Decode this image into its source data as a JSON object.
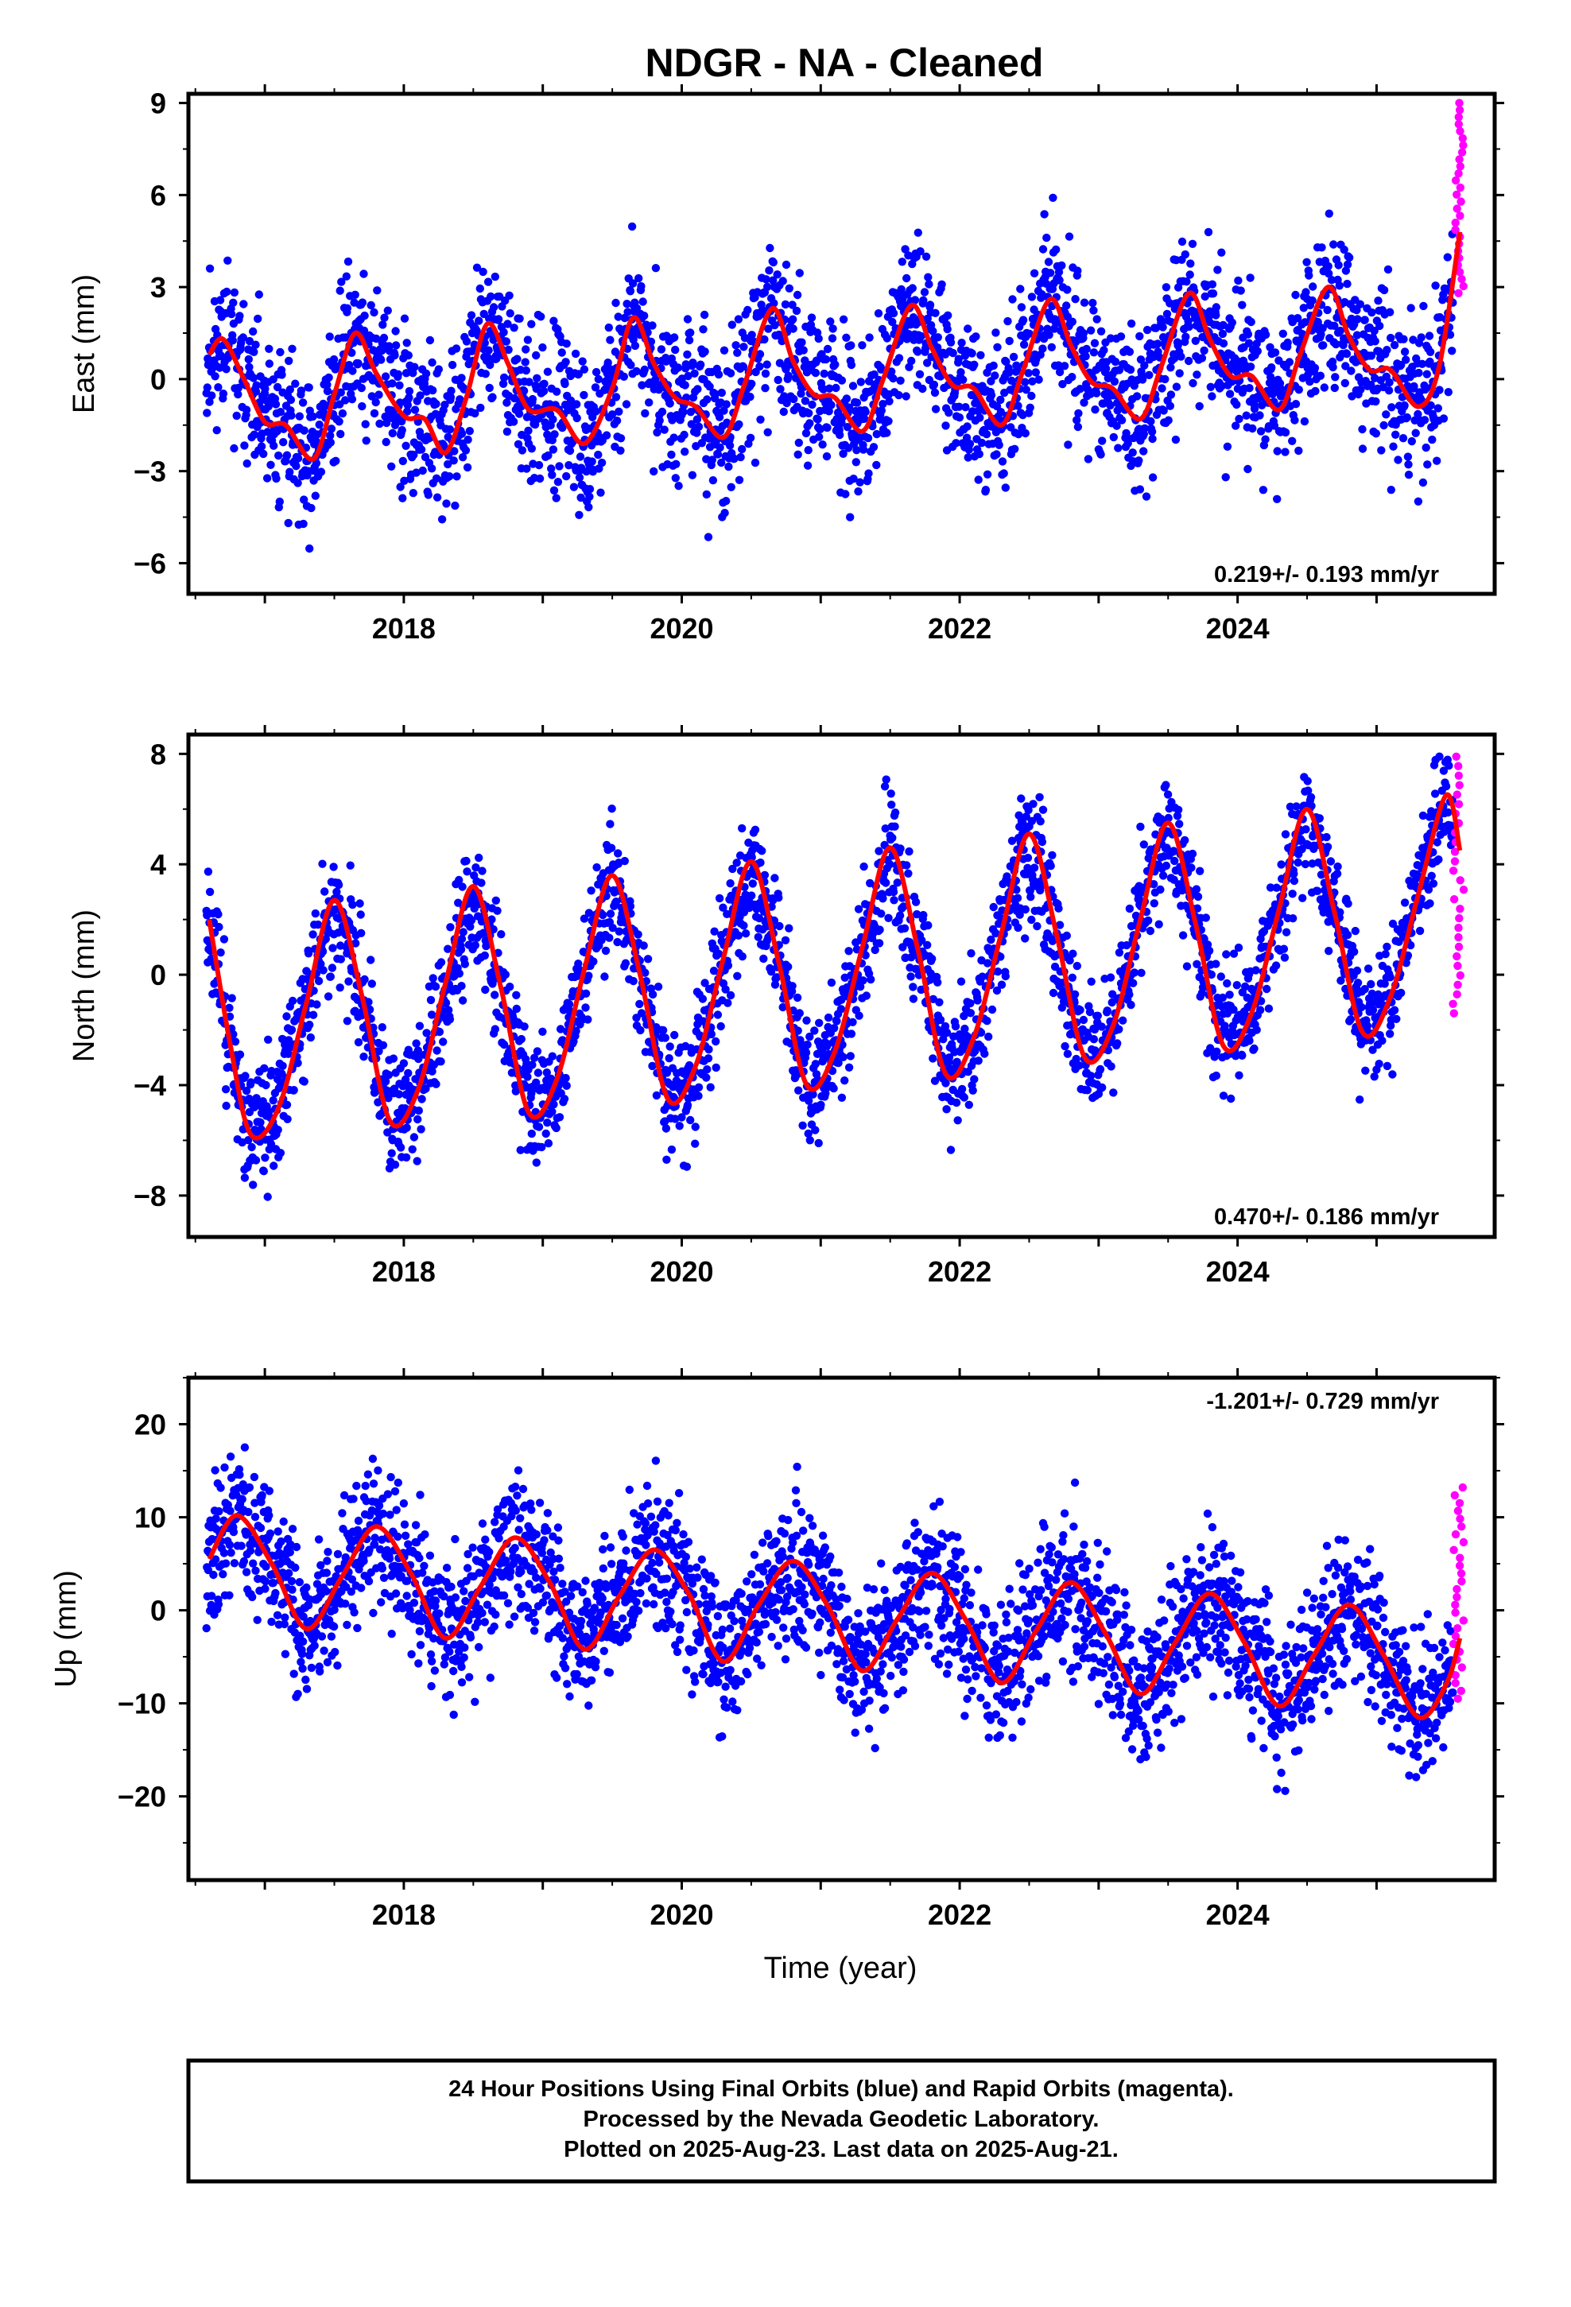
{
  "title": "NDGR  - NA - Cleaned",
  "footer": {
    "line1": "24 Hour Positions Using Final Orbits (blue) and Rapid Orbits (magenta).",
    "line2": "Processed by the Nevada Geodetic Laboratory.",
    "line3": "Plotted on 2025-Aug-23. Last data on 2025-Aug-21."
  },
  "colors": {
    "final": "#0000ff",
    "rapid": "#ff00ff",
    "fit": "#ff0000",
    "frame": "#000000"
  },
  "chart_data": [
    {
      "type": "scatter",
      "ylabel": "East (mm)",
      "xlim": [
        2016.45,
        2025.85
      ],
      "ylim": [
        -7,
        9.3
      ],
      "yticks": [
        -6,
        -3,
        0,
        3,
        6,
        9
      ],
      "xticks": [
        2018,
        2020,
        2022,
        2024
      ],
      "xticklabels": [
        "2018",
        "2020",
        "2022",
        "2024"
      ],
      "rate_label": "0.219+/- 0.193 mm/yr",
      "fit": {
        "x": [
          2016.6,
          2016.7,
          2016.85,
          2017.0,
          2017.15,
          2017.35,
          2017.5,
          2017.65,
          2017.8,
          2018.0,
          2018.15,
          2018.3,
          2018.45,
          2018.6,
          2018.75,
          2018.9,
          2019.1,
          2019.3,
          2019.5,
          2019.65,
          2019.8,
          2019.95,
          2020.1,
          2020.3,
          2020.45,
          2020.65,
          2020.8,
          2020.95,
          2021.1,
          2021.3,
          2021.45,
          2021.65,
          2021.8,
          2021.95,
          2022.1,
          2022.3,
          2022.45,
          2022.65,
          2022.8,
          2022.95,
          2023.1,
          2023.3,
          2023.45,
          2023.65,
          2023.8,
          2023.95,
          2024.1,
          2024.3,
          2024.45,
          2024.65,
          2024.8,
          2024.95,
          2025.1,
          2025.3,
          2025.45,
          2025.6
        ],
        "y": [
          0.8,
          1.3,
          0.0,
          -1.4,
          -1.5,
          -2.6,
          -0.5,
          1.5,
          0.2,
          -1.2,
          -1.3,
          -2.4,
          -0.6,
          1.8,
          0.5,
          -1.0,
          -1.0,
          -2.1,
          -0.3,
          2.0,
          0.5,
          -0.6,
          -0.9,
          -1.9,
          -0.2,
          2.3,
          0.6,
          -0.5,
          -0.6,
          -1.7,
          0.0,
          2.4,
          1.0,
          -0.2,
          -0.3,
          -1.5,
          0.2,
          2.6,
          1.1,
          -0.1,
          -0.3,
          -1.3,
          0.4,
          2.8,
          1.3,
          0.1,
          0.1,
          -1.0,
          0.8,
          3.0,
          1.4,
          0.3,
          0.3,
          -0.9,
          0.4,
          4.8
        ]
      },
      "rapid": {
        "x_range": [
          2025.55,
          2025.63
        ],
        "y_range": [
          2.8,
          9.0
        ]
      },
      "scatter": {
        "sd": 1.25,
        "seed": 11
      }
    },
    {
      "type": "scatter",
      "ylabel": "North (mm)",
      "xlim": [
        2016.45,
        2025.85
      ],
      "ylim": [
        -9.5,
        8.7
      ],
      "yticks": [
        -8,
        -4,
        0,
        4,
        8
      ],
      "xticks": [
        2018,
        2020,
        2022,
        2024
      ],
      "xticklabels": [
        "2018",
        "2020",
        "2022",
        "2024"
      ],
      "rate_label": "0.470+/- 0.186 mm/yr",
      "fit": {
        "x": [
          2016.6,
          2016.75,
          2016.9,
          2017.1,
          2017.3,
          2017.5,
          2017.7,
          2017.9,
          2018.1,
          2018.3,
          2018.5,
          2018.7,
          2018.9,
          2019.1,
          2019.3,
          2019.5,
          2019.7,
          2019.9,
          2020.1,
          2020.3,
          2020.5,
          2020.7,
          2020.9,
          2021.1,
          2021.3,
          2021.5,
          2021.7,
          2021.9,
          2022.1,
          2022.3,
          2022.5,
          2022.7,
          2022.9,
          2023.1,
          2023.3,
          2023.5,
          2023.7,
          2023.9,
          2024.1,
          2024.3,
          2024.5,
          2024.7,
          2024.9,
          2025.1,
          2025.3,
          2025.5,
          2025.6
        ],
        "y": [
          2.0,
          -2.5,
          -5.8,
          -4.8,
          -1.0,
          2.7,
          -0.8,
          -5.3,
          -4.2,
          -0.3,
          3.2,
          -0.5,
          -5.0,
          -3.8,
          0.2,
          3.6,
          0.0,
          -4.5,
          -3.3,
          0.6,
          4.1,
          0.4,
          -4.0,
          -2.8,
          1.0,
          4.6,
          0.9,
          -3.6,
          -2.3,
          1.5,
          5.1,
          1.4,
          -3.0,
          -1.9,
          2.0,
          5.5,
          1.8,
          -2.6,
          -1.4,
          2.4,
          6.0,
          2.2,
          -2.1,
          -0.8,
          2.9,
          6.5,
          4.5
        ]
      },
      "rapid": {
        "x_range": [
          2025.55,
          2025.63
        ],
        "y_range": [
          -1.4,
          7.9
        ]
      },
      "scatter": {
        "sd": 1.1,
        "seed": 23
      }
    },
    {
      "type": "scatter",
      "ylabel": "Up (mm)",
      "xlim": [
        2016.45,
        2025.85
      ],
      "ylim": [
        -29,
        25
      ],
      "yticks": [
        -20,
        -10,
        0,
        10,
        20
      ],
      "xticks": [
        2018,
        2020,
        2022,
        2024
      ],
      "xticklabels": [
        "2018",
        "2020",
        "2022",
        "2024"
      ],
      "xlabel": "Time (year)",
      "rate_label": "-1.201+/- 0.729 mm/yr",
      "fit": {
        "x": [
          2016.6,
          2016.8,
          2017.05,
          2017.3,
          2017.55,
          2017.8,
          2018.05,
          2018.3,
          2018.55,
          2018.8,
          2019.05,
          2019.3,
          2019.55,
          2019.8,
          2020.05,
          2020.3,
          2020.55,
          2020.8,
          2021.05,
          2021.3,
          2021.55,
          2021.8,
          2022.05,
          2022.3,
          2022.55,
          2022.8,
          2023.05,
          2023.3,
          2023.55,
          2023.8,
          2024.05,
          2024.3,
          2024.55,
          2024.8,
          2025.05,
          2025.3,
          2025.5,
          2025.6
        ],
        "y": [
          5.5,
          10.2,
          5.0,
          -2.0,
          3.5,
          9.0,
          4.0,
          -3.0,
          2.5,
          7.8,
          3.0,
          -4.2,
          1.5,
          6.5,
          1.8,
          -5.5,
          0.5,
          5.3,
          0.5,
          -6.5,
          -1.0,
          4.0,
          -1.2,
          -7.8,
          -2.2,
          3.0,
          -2.5,
          -9.0,
          -3.5,
          1.8,
          -3.5,
          -10.3,
          -4.8,
          0.6,
          -4.8,
          -11.5,
          -8.0,
          -3.0
        ]
      },
      "rapid": {
        "x_range": [
          2025.55,
          2025.63
        ],
        "y_range": [
          -9.5,
          13.2
        ]
      },
      "scatter": {
        "sd": 3.8,
        "seed": 37
      }
    }
  ]
}
